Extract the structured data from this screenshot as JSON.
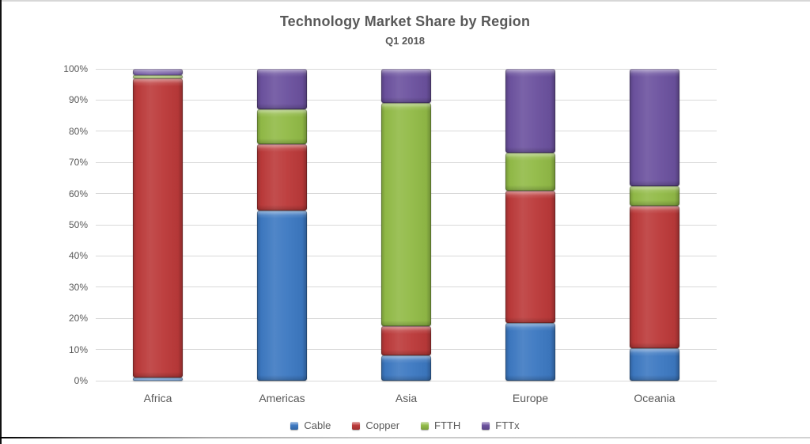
{
  "chart_data": {
    "type": "bar",
    "stacked": true,
    "percent": true,
    "title": "Technology Market Share by Region",
    "subtitle": "Q1 2018",
    "categories": [
      "Africa",
      "Americas",
      "Asia",
      "Europe",
      "Oceania"
    ],
    "series": [
      {
        "name": "Cable",
        "color": "#3D79C2",
        "values": [
          1,
          54.5,
          8,
          18.5,
          10.5
        ]
      },
      {
        "name": "Copper",
        "color": "#BC3A3A",
        "values": [
          96,
          21.5,
          9.5,
          42.5,
          45.5
        ]
      },
      {
        "name": "FTTH",
        "color": "#92BB47",
        "values": [
          1,
          11,
          71.5,
          12,
          6.5
        ]
      },
      {
        "name": "FTTx",
        "color": "#6C529F",
        "values": [
          2,
          13,
          11,
          27,
          37.5
        ]
      }
    ],
    "ylim": [
      0,
      100
    ],
    "ytick_step": 10,
    "ytick_labels": [
      "0%",
      "10%",
      "20%",
      "30%",
      "40%",
      "50%",
      "60%",
      "70%",
      "80%",
      "90%",
      "100%"
    ],
    "grid": true,
    "legend_position": "bottom",
    "colors": {
      "grid": "#d9d9d9",
      "text": "#595959"
    }
  }
}
